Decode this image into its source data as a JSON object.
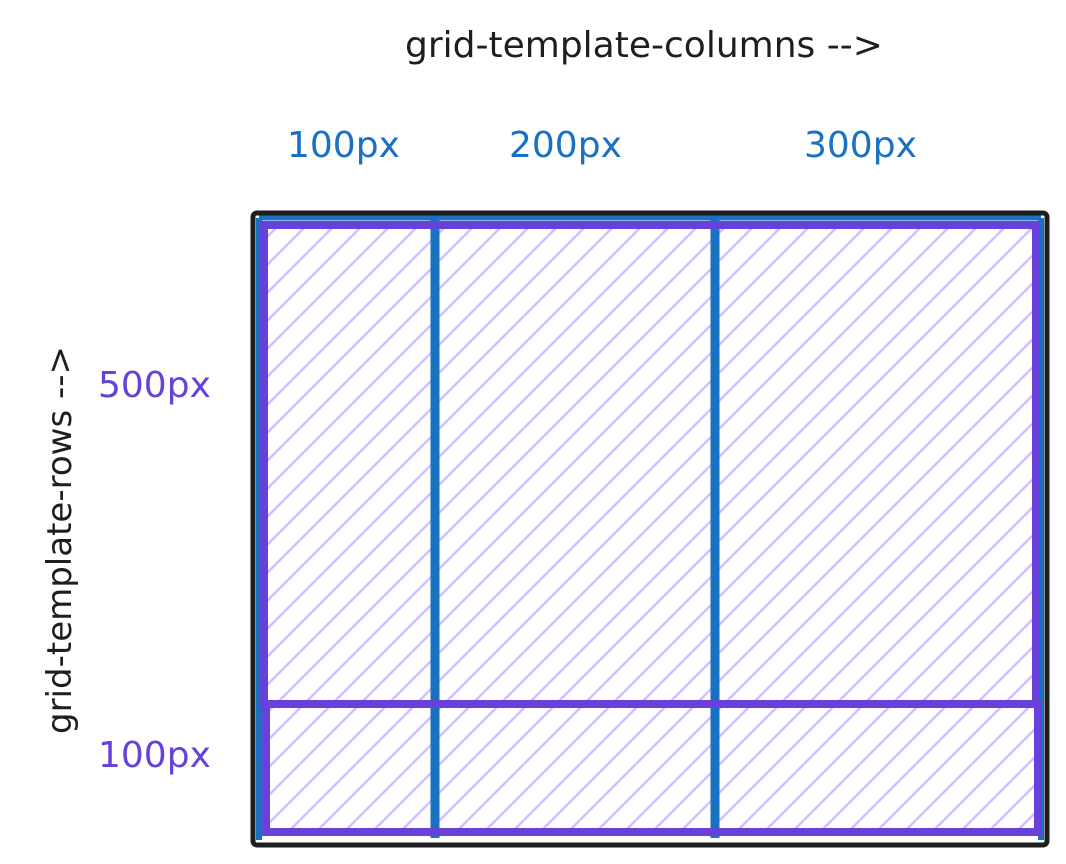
{
  "titles": {
    "columns": "grid-template-columns -->",
    "rows": "grid-template-rows -->"
  },
  "columns": [
    {
      "label": "100px"
    },
    {
      "label": "200px"
    },
    {
      "label": "300px"
    }
  ],
  "rows": [
    {
      "label": "500px"
    },
    {
      "label": "100px"
    }
  ],
  "colors": {
    "container_border": "#1e1e1e",
    "column_lines": "#1971c2",
    "row_lines": "#6741d9",
    "hatch": "#d0bfff"
  }
}
